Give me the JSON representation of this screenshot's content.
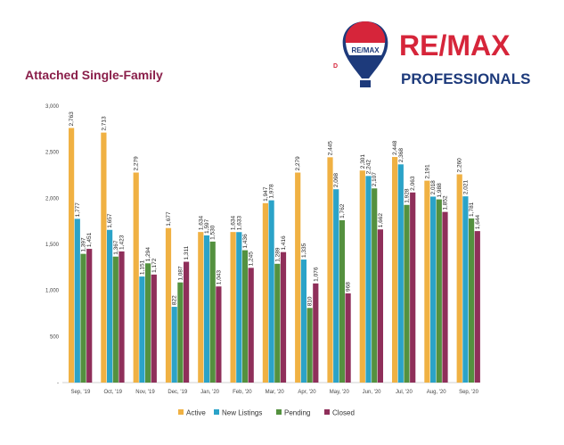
{
  "header": {
    "title": "Attached Single-Family",
    "logo_badge_text": "RE/MAX",
    "logo_name": "RE/MAX",
    "logo_sub": "PROFESSIONALS",
    "logo_mark": "D"
  },
  "colors": {
    "Active": "#f0b143",
    "New Listings": "#2ba3c8",
    "Pending": "#54913f",
    "Closed": "#8f2f5a",
    "title": "#8a1f4a",
    "logo_red": "#d6253a",
    "logo_blue": "#1d3a7b"
  },
  "chart_data": {
    "type": "bar",
    "title": "Attached Single-Family",
    "categories": [
      "Sep, '19",
      "Oct, '19",
      "Nov, '19",
      "Dec, '19",
      "Jan, '20",
      "Feb, '20",
      "Mar, '20",
      "Apr, '20",
      "May, '20",
      "Jun, '20",
      "Jul, '20",
      "Aug, '20",
      "Sep, '20"
    ],
    "series": [
      {
        "name": "Active",
        "values": [
          2763,
          2713,
          2279,
          1677,
          1634,
          1634,
          1947,
          2279,
          2445,
          2301,
          2448,
          2191,
          2260
        ]
      },
      {
        "name": "New Listings",
        "values": [
          1777,
          1657,
          1151,
          822,
          1597,
          1633,
          1978,
          1335,
          2098,
          2242,
          2368,
          2018,
          2021
        ]
      },
      {
        "name": "Pending",
        "values": [
          1397,
          1367,
          1294,
          1087,
          1530,
          1436,
          1289,
          810,
          1762,
          2107,
          1928,
          1988,
          1781
        ]
      },
      {
        "name": "Closed",
        "values": [
          1451,
          1423,
          1172,
          1311,
          1043,
          1245,
          1416,
          1076,
          968,
          1662,
          2063,
          1852,
          1644
        ]
      }
    ],
    "ylim": [
      0,
      3000
    ],
    "yticks": [
      0,
      500,
      1000,
      1500,
      2000,
      2500,
      3000
    ],
    "ytick_labels": [
      "-",
      "500",
      "1,000",
      "1,500",
      "2,000",
      "2,500",
      "3,000"
    ],
    "legend_position": "bottom",
    "grid": false
  }
}
